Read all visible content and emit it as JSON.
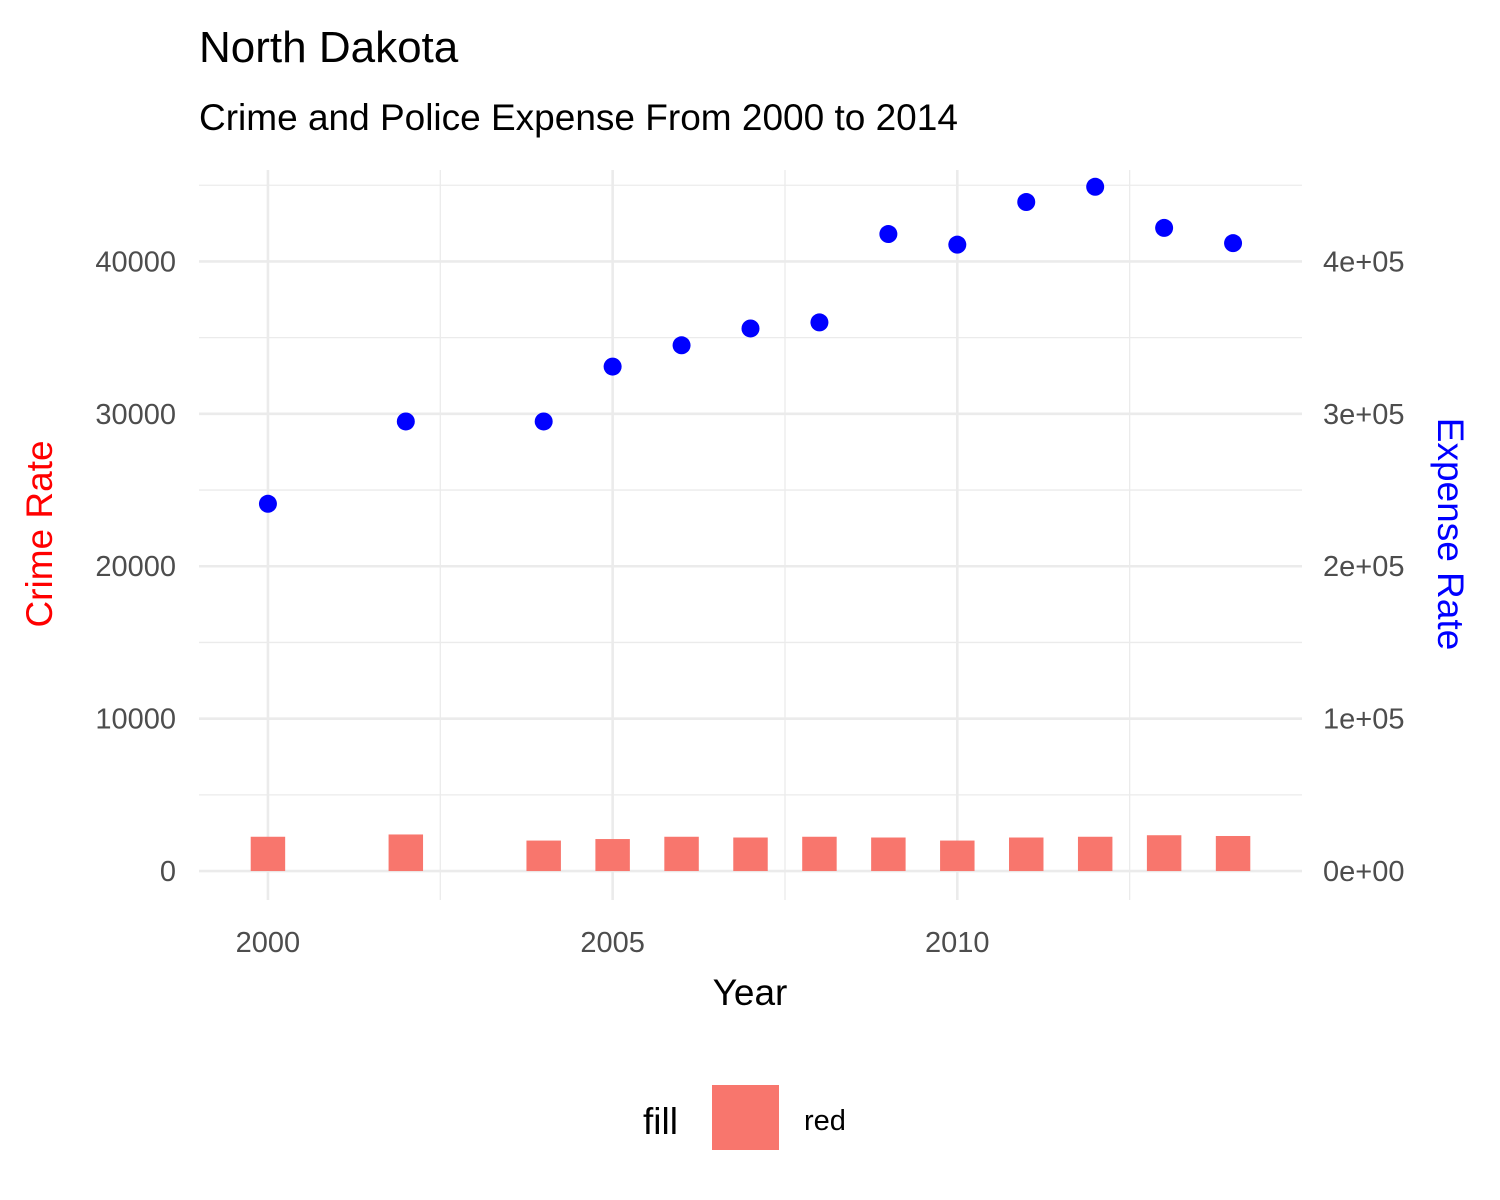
{
  "chart_data": {
    "type": "bar",
    "title": "North Dakota",
    "subtitle": "Crime and Police Expense From 2000 to 2014",
    "xlabel": "Year",
    "ylabel_left": "Crime Rate",
    "ylabel_right": "Expense Rate",
    "xlim": [
      1999.0,
      2015.0
    ],
    "ylim_left": [
      -1900,
      46000
    ],
    "ylim_right": [
      -19000,
      460000
    ],
    "x_ticks": [
      2000,
      2005,
      2010
    ],
    "x_tick_labels": [
      "2000",
      "2005",
      "2010"
    ],
    "y_left_ticks": [
      0,
      10000,
      20000,
      30000,
      40000
    ],
    "y_left_tick_labels": [
      "0",
      "10000",
      "20000",
      "30000",
      "40000"
    ],
    "y_right_ticks": [
      0,
      100000,
      200000,
      300000,
      400000
    ],
    "y_right_tick_labels": [
      "0e+00",
      "1e+05",
      "2e+05",
      "3e+05",
      "4e+05"
    ],
    "grid": true,
    "legend": {
      "position": "bottom",
      "title": "fill",
      "label": "red"
    },
    "colors": {
      "bars": "#f8766d",
      "points": "#0000ff",
      "left_axis_title": "#ff0000",
      "right_axis_title": "#0000ff"
    },
    "series": [
      {
        "type": "bar",
        "axis": "left",
        "x": [
          2000,
          2002,
          2004,
          2005,
          2006,
          2007,
          2008,
          2009,
          2010,
          2011,
          2012,
          2013,
          2014
        ],
        "values": [
          2250,
          2400,
          2000,
          2100,
          2250,
          2200,
          2250,
          2200,
          2000,
          2200,
          2250,
          2350,
          2300
        ]
      },
      {
        "type": "scatter",
        "axis": "right",
        "x": [
          2000,
          2002,
          2004,
          2005,
          2006,
          2007,
          2008,
          2009,
          2010,
          2011,
          2012,
          2013,
          2014
        ],
        "values": [
          241000,
          295000,
          295000,
          331000,
          345000,
          356000,
          360000,
          418000,
          411000,
          439000,
          449000,
          422000,
          412000
        ]
      }
    ]
  }
}
